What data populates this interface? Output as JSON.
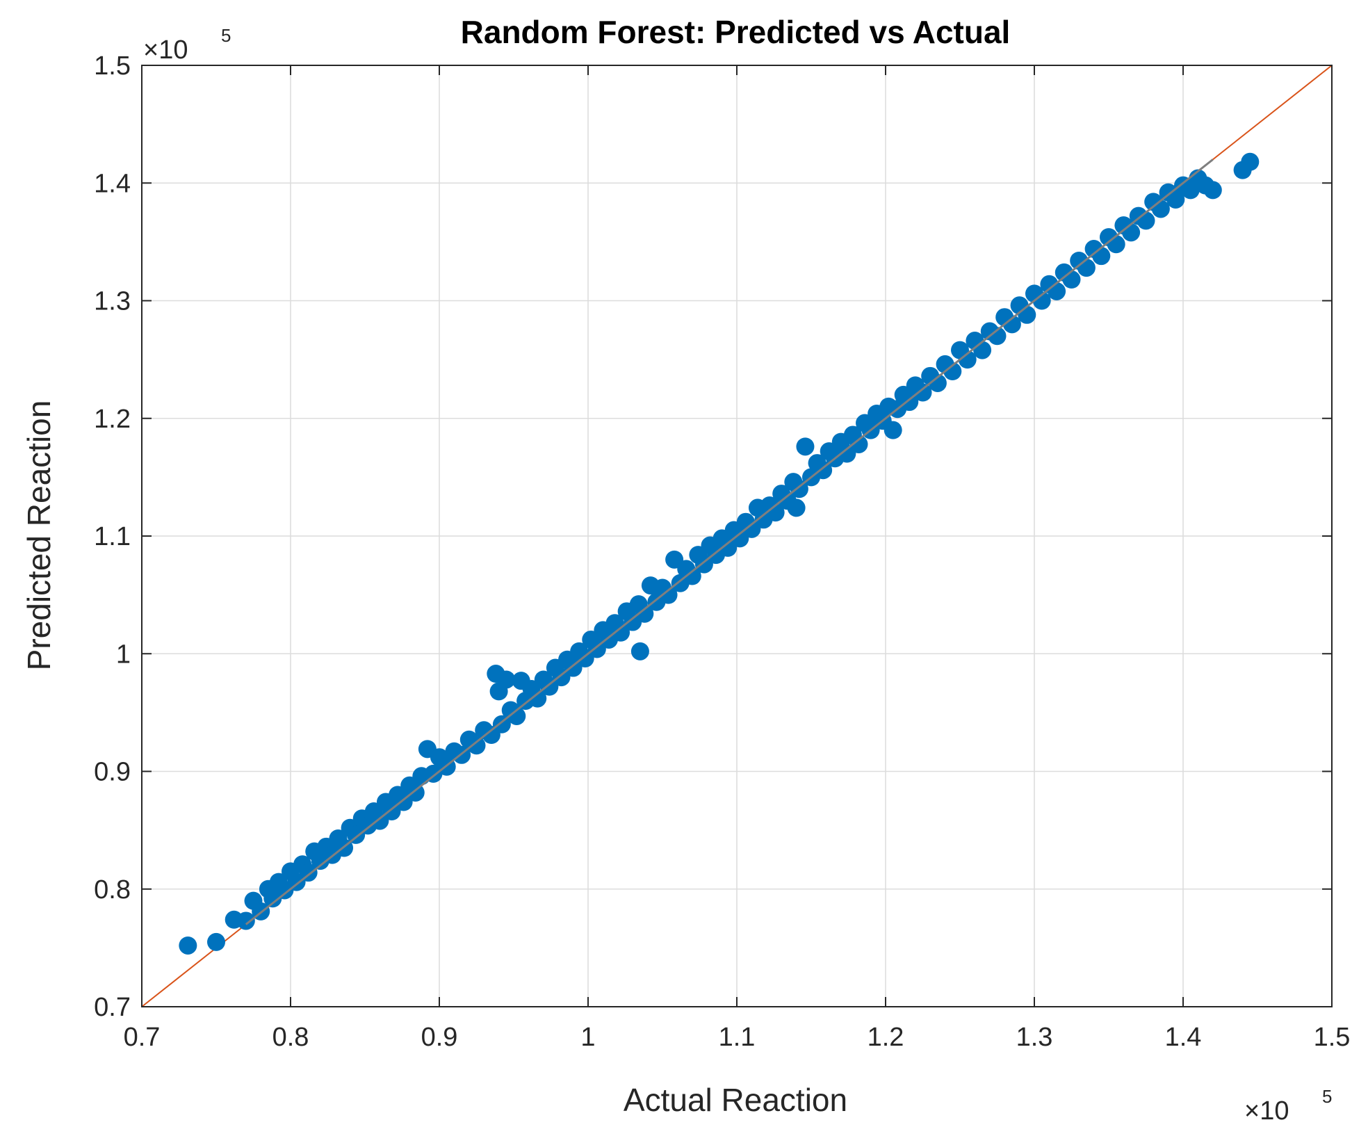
{
  "chart_data": {
    "type": "scatter",
    "title": "Random Forest: Predicted vs Actual",
    "xlabel": "Actual Reaction",
    "ylabel": "Predicted Reaction",
    "xlim": [
      0.7,
      1.5
    ],
    "ylim": [
      0.7,
      1.5
    ],
    "x_ticks": [
      "0.7",
      "0.8",
      "0.9",
      "1",
      "1.1",
      "1.2",
      "1.3",
      "1.4",
      "1.5"
    ],
    "y_ticks": [
      "0.7",
      "0.8",
      "0.9",
      "1",
      "1.1",
      "1.2",
      "1.3",
      "1.4",
      "1.5"
    ],
    "x_tick_values": [
      0.7,
      0.8,
      0.9,
      1.0,
      1.1,
      1.2,
      1.3,
      1.4,
      1.5
    ],
    "y_tick_values": [
      0.7,
      0.8,
      0.9,
      1.0,
      1.1,
      1.2,
      1.3,
      1.4,
      1.5
    ],
    "x_exponent_base": "×10",
    "x_exponent_power": "5",
    "y_exponent_base": "×10",
    "y_exponent_power": "5",
    "grid": true,
    "reference_line": {
      "from": [
        0.7,
        0.7
      ],
      "to": [
        1.5,
        1.5
      ],
      "color": "#d95319"
    },
    "fit_line": {
      "from": [
        0.77,
        0.77
      ],
      "to": [
        1.42,
        1.42
      ],
      "color": "#7f7f7f"
    },
    "marker_color": "#0072bd",
    "series": [
      {
        "points": [
          [
            0.731,
            0.752
          ],
          [
            0.75,
            0.755
          ],
          [
            0.762,
            0.774
          ],
          [
            0.77,
            0.773
          ],
          [
            0.775,
            0.79
          ],
          [
            0.78,
            0.781
          ],
          [
            0.785,
            0.8
          ],
          [
            0.788,
            0.792
          ],
          [
            0.792,
            0.806
          ],
          [
            0.796,
            0.799
          ],
          [
            0.8,
            0.815
          ],
          [
            0.804,
            0.806
          ],
          [
            0.808,
            0.821
          ],
          [
            0.812,
            0.814
          ],
          [
            0.816,
            0.832
          ],
          [
            0.82,
            0.824
          ],
          [
            0.824,
            0.836
          ],
          [
            0.828,
            0.829
          ],
          [
            0.832,
            0.843
          ],
          [
            0.836,
            0.835
          ],
          [
            0.84,
            0.852
          ],
          [
            0.844,
            0.846
          ],
          [
            0.848,
            0.86
          ],
          [
            0.852,
            0.854
          ],
          [
            0.856,
            0.866
          ],
          [
            0.86,
            0.858
          ],
          [
            0.864,
            0.874
          ],
          [
            0.868,
            0.866
          ],
          [
            0.872,
            0.88
          ],
          [
            0.876,
            0.874
          ],
          [
            0.88,
            0.888
          ],
          [
            0.884,
            0.882
          ],
          [
            0.888,
            0.896
          ],
          [
            0.892,
            0.919
          ],
          [
            0.896,
            0.898
          ],
          [
            0.9,
            0.912
          ],
          [
            0.905,
            0.904
          ],
          [
            0.91,
            0.917
          ],
          [
            0.915,
            0.914
          ],
          [
            0.92,
            0.927
          ],
          [
            0.925,
            0.922
          ],
          [
            0.93,
            0.935
          ],
          [
            0.935,
            0.931
          ],
          [
            0.938,
            0.983
          ],
          [
            0.945,
            0.978
          ],
          [
            0.94,
            0.968
          ],
          [
            0.942,
            0.94
          ],
          [
            0.948,
            0.952
          ],
          [
            0.952,
            0.947
          ],
          [
            0.955,
            0.977
          ],
          [
            0.958,
            0.96
          ],
          [
            0.962,
            0.97
          ],
          [
            0.966,
            0.962
          ],
          [
            0.97,
            0.978
          ],
          [
            0.974,
            0.972
          ],
          [
            0.978,
            0.988
          ],
          [
            0.982,
            0.98
          ],
          [
            0.986,
            0.995
          ],
          [
            0.99,
            0.988
          ],
          [
            0.994,
            1.002
          ],
          [
            0.998,
            0.996
          ],
          [
            1.002,
            1.012
          ],
          [
            1.006,
            1.004
          ],
          [
            1.01,
            1.02
          ],
          [
            1.014,
            1.012
          ],
          [
            1.018,
            1.026
          ],
          [
            1.022,
            1.018
          ],
          [
            1.026,
            1.036
          ],
          [
            1.03,
            1.027
          ],
          [
            1.034,
            1.042
          ],
          [
            1.035,
            1.002
          ],
          [
            1.038,
            1.034
          ],
          [
            1.042,
            1.058
          ],
          [
            1.046,
            1.044
          ],
          [
            1.05,
            1.056
          ],
          [
            1.054,
            1.05
          ],
          [
            1.058,
            1.08
          ],
          [
            1.062,
            1.06
          ],
          [
            1.066,
            1.072
          ],
          [
            1.07,
            1.066
          ],
          [
            1.074,
            1.084
          ],
          [
            1.078,
            1.076
          ],
          [
            1.082,
            1.092
          ],
          [
            1.086,
            1.084
          ],
          [
            1.09,
            1.098
          ],
          [
            1.094,
            1.09
          ],
          [
            1.098,
            1.105
          ],
          [
            1.102,
            1.098
          ],
          [
            1.106,
            1.112
          ],
          [
            1.11,
            1.106
          ],
          [
            1.114,
            1.124
          ],
          [
            1.118,
            1.114
          ],
          [
            1.122,
            1.126
          ],
          [
            1.126,
            1.12
          ],
          [
            1.13,
            1.136
          ],
          [
            1.134,
            1.13
          ],
          [
            1.138,
            1.146
          ],
          [
            1.14,
            1.124
          ],
          [
            1.142,
            1.14
          ],
          [
            1.146,
            1.176
          ],
          [
            1.15,
            1.15
          ],
          [
            1.154,
            1.162
          ],
          [
            1.158,
            1.156
          ],
          [
            1.162,
            1.172
          ],
          [
            1.166,
            1.166
          ],
          [
            1.17,
            1.18
          ],
          [
            1.174,
            1.17
          ],
          [
            1.178,
            1.186
          ],
          [
            1.182,
            1.178
          ],
          [
            1.186,
            1.196
          ],
          [
            1.19,
            1.19
          ],
          [
            1.194,
            1.204
          ],
          [
            1.198,
            1.198
          ],
          [
            1.202,
            1.21
          ],
          [
            1.205,
            1.19
          ],
          [
            1.208,
            1.208
          ],
          [
            1.212,
            1.22
          ],
          [
            1.216,
            1.214
          ],
          [
            1.22,
            1.228
          ],
          [
            1.225,
            1.222
          ],
          [
            1.23,
            1.236
          ],
          [
            1.235,
            1.23
          ],
          [
            1.24,
            1.246
          ],
          [
            1.245,
            1.24
          ],
          [
            1.25,
            1.258
          ],
          [
            1.255,
            1.25
          ],
          [
            1.26,
            1.266
          ],
          [
            1.265,
            1.258
          ],
          [
            1.27,
            1.274
          ],
          [
            1.275,
            1.27
          ],
          [
            1.28,
            1.286
          ],
          [
            1.285,
            1.28
          ],
          [
            1.29,
            1.296
          ],
          [
            1.295,
            1.288
          ],
          [
            1.3,
            1.306
          ],
          [
            1.305,
            1.3
          ],
          [
            1.31,
            1.314
          ],
          [
            1.315,
            1.308
          ],
          [
            1.32,
            1.324
          ],
          [
            1.325,
            1.318
          ],
          [
            1.33,
            1.334
          ],
          [
            1.335,
            1.328
          ],
          [
            1.34,
            1.344
          ],
          [
            1.345,
            1.338
          ],
          [
            1.35,
            1.354
          ],
          [
            1.355,
            1.348
          ],
          [
            1.36,
            1.364
          ],
          [
            1.365,
            1.358
          ],
          [
            1.37,
            1.372
          ],
          [
            1.375,
            1.368
          ],
          [
            1.38,
            1.384
          ],
          [
            1.385,
            1.378
          ],
          [
            1.39,
            1.392
          ],
          [
            1.395,
            1.386
          ],
          [
            1.4,
            1.398
          ],
          [
            1.405,
            1.394
          ],
          [
            1.41,
            1.404
          ],
          [
            1.415,
            1.398
          ],
          [
            1.42,
            1.394
          ],
          [
            1.44,
            1.411
          ],
          [
            1.445,
            1.418
          ]
        ]
      }
    ]
  }
}
